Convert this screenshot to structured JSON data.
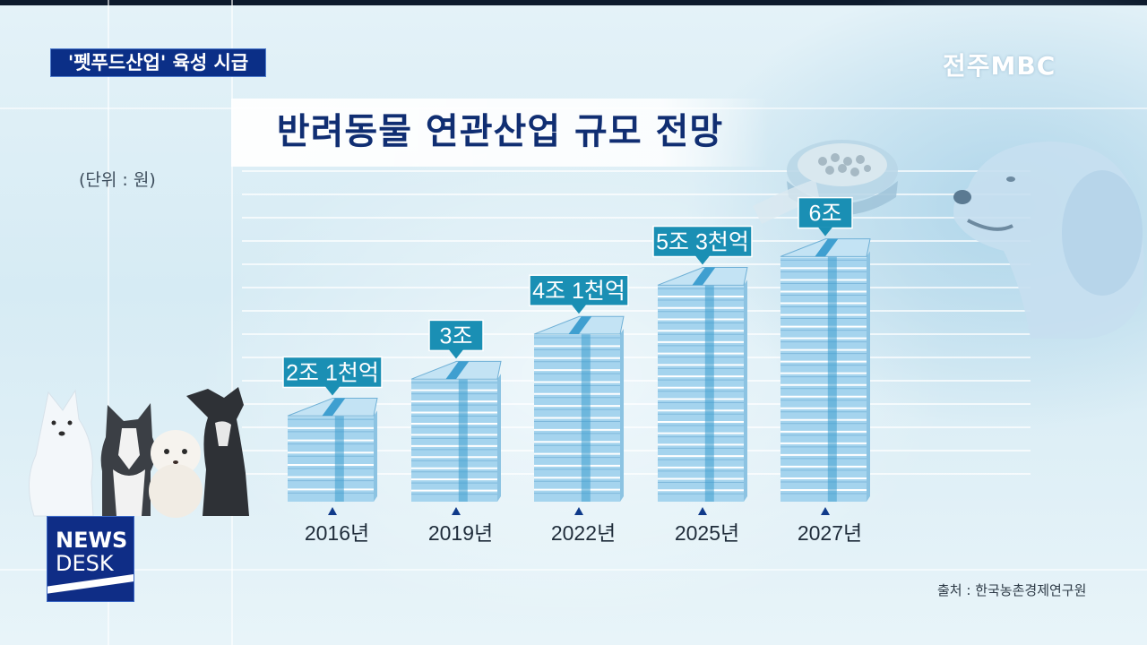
{
  "header": {
    "headline": "'펫푸드산업' 육성 시급",
    "logo": "전주MBC"
  },
  "title": "반려동물 연관산업 규모 전망",
  "unit_label": "(단위 : 원)",
  "source": "출처 : 한국농촌경제연구원",
  "news_desk": {
    "line1": "NEWS",
    "line2": "DESK"
  },
  "colors": {
    "label_box": "#1a8fb4",
    "stack_face": "#a5d4ee",
    "stack_stripe": "#3f9fd0",
    "band": "#ffffff",
    "title": "#102e72"
  },
  "chart_data": {
    "type": "bar",
    "title": "반려동물 연관산업 규모 전망",
    "unit": "(단위 : 원)",
    "categories": [
      "2016년",
      "2019년",
      "2022년",
      "2025년",
      "2027년"
    ],
    "values": [
      2.1,
      3.0,
      4.1,
      5.3,
      6.0
    ],
    "value_unit": "조 원",
    "data_labels": [
      "2조 1천억",
      "3조",
      "4조 1천억",
      "5조 3천억",
      "6조"
    ]
  }
}
